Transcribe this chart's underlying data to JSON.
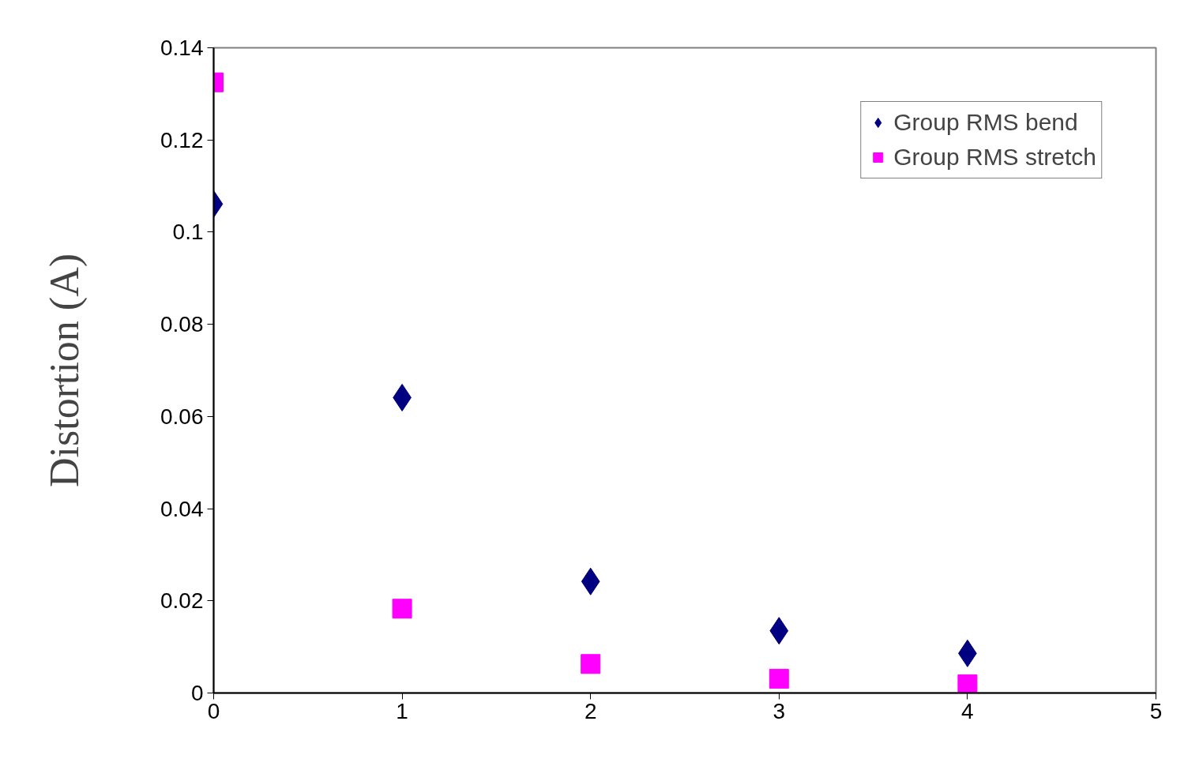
{
  "chart_data": {
    "type": "scatter",
    "ylabel": "Distortion (A)",
    "x": [
      0,
      1,
      2,
      3,
      4
    ],
    "series": [
      {
        "name": "Group RMS bend",
        "color": "#000080",
        "marker": "diamond",
        "values": [
          0.1061,
          0.0641,
          0.0242,
          0.0135,
          0.0086
        ]
      },
      {
        "name": "Group RMS stretch",
        "color": "#ff00ff",
        "marker": "square",
        "values": [
          0.1325,
          0.0183,
          0.0063,
          0.0031,
          0.0019
        ]
      }
    ],
    "xlim": [
      0,
      5
    ],
    "xticks": [
      0,
      1,
      2,
      3,
      4,
      5
    ],
    "ylim": [
      0,
      0.14
    ],
    "yticks": [
      0,
      0.02,
      0.04,
      0.06,
      0.08,
      0.1,
      0.12,
      0.14
    ],
    "grid": false,
    "legend": "top right"
  }
}
